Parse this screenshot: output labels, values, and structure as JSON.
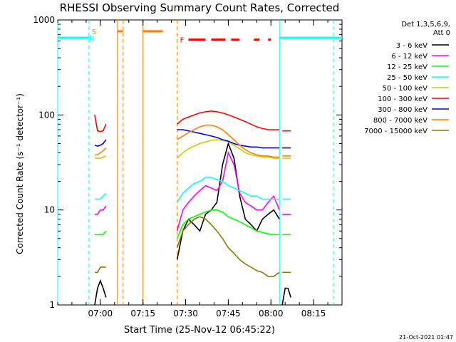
{
  "chart_data": {
    "type": "line",
    "title": "RHESSI Observing Summary Count Rates, Corrected",
    "xlabel": "Start Time (25-Nov-12 06:45:22)",
    "ylabel": "Corrected Count Rate (s⁻¹ detector⁻¹)",
    "yscale": "log",
    "ylim": [
      1,
      1000
    ],
    "yticks": [
      1,
      10,
      100,
      1000
    ],
    "ytick_labels": [
      "1",
      "10",
      "100",
      "1000"
    ],
    "xlim": [
      "06:45",
      "08:25"
    ],
    "xticks": [
      "07:00",
      "07:15",
      "07:30",
      "07:45",
      "08:00",
      "08:15"
    ],
    "legend": {
      "position": "top-right",
      "header": [
        "Det 1,3,5,6,9,",
        "Att 0"
      ]
    },
    "footer": "21-Oct-2021 01:47",
    "series": [
      {
        "name": "3 - 6 keV",
        "color": "#000000",
        "segments": [
          {
            "x": [
              "06:58",
              "06:59",
              "07:00",
              "07:01",
              "07:02"
            ],
            "y": [
              1.0,
              1.5,
              1.8,
              1.5,
              1.2
            ]
          },
          {
            "x": [
              "07:27",
              "07:29",
              "07:31",
              "07:33",
              "07:35",
              "07:37",
              "07:39",
              "07:41",
              "07:43",
              "07:45",
              "07:47",
              "07:49",
              "07:51",
              "07:53",
              "07:55",
              "07:57",
              "07:59",
              "08:01",
              "08:03"
            ],
            "y": [
              3,
              6,
              8,
              7,
              6,
              9,
              10,
              12,
              30,
              50,
              35,
              14,
              8,
              7,
              6,
              8,
              9,
              10,
              8
            ]
          },
          {
            "x": [
              "08:04",
              "08:05",
              "08:06",
              "08:07"
            ],
            "y": [
              1.0,
              1.5,
              1.5,
              1.2
            ]
          }
        ]
      },
      {
        "name": "6 - 12 keV",
        "color": "#ff00ff",
        "segments": [
          {
            "x": [
              "06:58",
              "06:59",
              "07:00",
              "07:01",
              "07:02"
            ],
            "y": [
              9,
              9,
              10,
              10,
              11
            ]
          },
          {
            "x": [
              "07:27",
              "07:29",
              "07:31",
              "07:33",
              "07:35",
              "07:37",
              "07:39",
              "07:41",
              "07:43",
              "07:45",
              "07:47",
              "07:49",
              "07:51",
              "07:53",
              "07:55",
              "07:57",
              "07:59",
              "08:01",
              "08:03"
            ],
            "y": [
              6,
              10,
              12,
              14,
              16,
              18,
              17,
              16,
              20,
              40,
              30,
              15,
              12,
              11,
              10,
              10,
              12,
              14,
              10
            ]
          },
          {
            "x": [
              "08:04",
              "08:05",
              "08:06",
              "08:07"
            ],
            "y": [
              9,
              9,
              9,
              9
            ]
          }
        ]
      },
      {
        "name": "12 - 25 keV",
        "color": "#00ff00",
        "segments": [
          {
            "x": [
              "06:58",
              "06:59",
              "07:00",
              "07:01",
              "07:02"
            ],
            "y": [
              5.5,
              5.5,
              5.5,
              5.5,
              6
            ]
          },
          {
            "x": [
              "07:27",
              "07:29",
              "07:31",
              "07:33",
              "07:35",
              "07:37",
              "07:39",
              "07:41",
              "07:43",
              "07:45",
              "07:47",
              "07:49",
              "07:51",
              "07:53",
              "07:55",
              "07:57",
              "07:59",
              "08:01",
              "08:03"
            ],
            "y": [
              5,
              7,
              8,
              8.5,
              9,
              9.5,
              10,
              10,
              9.5,
              8.5,
              8,
              7.5,
              7,
              6.5,
              6,
              5.8,
              5.6,
              5.5,
              5.5
            ]
          },
          {
            "x": [
              "08:04",
              "08:05",
              "08:06",
              "08:07"
            ],
            "y": [
              5.5,
              5.5,
              5.5,
              5.5
            ]
          }
        ]
      },
      {
        "name": "25 - 50 keV",
        "color": "#00ffff",
        "segments": [
          {
            "x": [
              "06:58",
              "06:59",
              "07:00",
              "07:01",
              "07:02"
            ],
            "y": [
              13,
              13,
              13,
              14,
              15
            ]
          },
          {
            "x": [
              "07:27",
              "07:29",
              "07:31",
              "07:33",
              "07:35",
              "07:37",
              "07:39",
              "07:41",
              "07:43",
              "07:45",
              "07:47",
              "07:49",
              "07:51",
              "07:53",
              "07:55",
              "07:57",
              "07:59",
              "08:01",
              "08:03"
            ],
            "y": [
              12,
              15,
              17,
              19,
              20,
              22,
              22,
              21,
              20,
              18,
              17,
              16,
              15,
              14,
              14,
              13,
              13,
              13,
              13
            ]
          },
          {
            "x": [
              "08:04",
              "08:05",
              "08:06",
              "08:07"
            ],
            "y": [
              13,
              13,
              13,
              13
            ]
          }
        ]
      },
      {
        "name": "50 - 100 keV",
        "color": "#cccc00",
        "segments": [
          {
            "x": [
              "06:58",
              "06:59",
              "07:00",
              "07:01",
              "07:02"
            ],
            "y": [
              35,
              35,
              35,
              36,
              37
            ]
          },
          {
            "x": [
              "07:27",
              "07:29",
              "07:31",
              "07:33",
              "07:35",
              "07:37",
              "07:39",
              "07:41",
              "07:43",
              "07:45",
              "07:47",
              "07:49",
              "07:51",
              "07:53",
              "07:55",
              "07:57",
              "07:59",
              "08:01",
              "08:03"
            ],
            "y": [
              35,
              40,
              44,
              47,
              50,
              52,
              54,
              55,
              54,
              52,
              48,
              44,
              40,
              38,
              37,
              36,
              36,
              35,
              35
            ]
          },
          {
            "x": [
              "08:04",
              "08:05",
              "08:06",
              "08:07"
            ],
            "y": [
              35,
              35,
              35,
              35
            ]
          }
        ]
      },
      {
        "name": "100 - 300 keV",
        "color": "#ff0000",
        "segments": [
          {
            "x": [
              "06:58",
              "06:59",
              "07:00",
              "07:01",
              "07:02"
            ],
            "y": [
              100,
              68,
              67,
              68,
              80
            ]
          },
          {
            "x": [
              "07:27",
              "07:29",
              "07:31",
              "07:33",
              "07:35",
              "07:37",
              "07:39",
              "07:41",
              "07:43",
              "07:45",
              "07:47",
              "07:49",
              "07:51",
              "07:53",
              "07:55",
              "07:57",
              "07:59",
              "08:01",
              "08:03"
            ],
            "y": [
              80,
              90,
              95,
              100,
              105,
              108,
              110,
              108,
              105,
              100,
              95,
              90,
              85,
              80,
              75,
              72,
              70,
              70,
              70
            ]
          },
          {
            "x": [
              "08:04",
              "08:05",
              "08:06",
              "08:07"
            ],
            "y": [
              68,
              68,
              68,
              68
            ]
          }
        ]
      },
      {
        "name": "300 - 800 keV",
        "color": "#0000ff",
        "segments": [
          {
            "x": [
              "06:58",
              "06:59",
              "07:00",
              "07:01",
              "07:02"
            ],
            "y": [
              48,
              47,
              48,
              50,
              55
            ]
          },
          {
            "x": [
              "07:27",
              "07:29",
              "07:31",
              "07:33",
              "07:35",
              "07:37",
              "07:39",
              "07:41",
              "07:43",
              "07:45",
              "07:47",
              "07:49",
              "07:51",
              "07:53",
              "07:55",
              "07:57",
              "07:59",
              "08:01",
              "08:03"
            ],
            "y": [
              70,
              70,
              68,
              66,
              64,
              62,
              60,
              58,
              55,
              53,
              50,
              48,
              47,
              46,
              46,
              45,
              45,
              45,
              45
            ]
          },
          {
            "x": [
              "08:04",
              "08:05",
              "08:06",
              "08:07"
            ],
            "y": [
              45,
              45,
              45,
              45
            ]
          }
        ]
      },
      {
        "name": "800 - 7000 keV",
        "color": "#ff8000",
        "segments": [
          {
            "x": [
              "06:58",
              "06:59",
              "07:00",
              "07:01",
              "07:02"
            ],
            "y": [
              38,
              38,
              40,
              42,
              45
            ]
          },
          {
            "x": [
              "07:27",
              "07:29",
              "07:31",
              "07:33",
              "07:35",
              "07:37",
              "07:39",
              "07:41",
              "07:43",
              "07:45",
              "07:47",
              "07:49",
              "07:51",
              "07:53",
              "07:55",
              "07:57",
              "07:59",
              "08:01",
              "08:03"
            ],
            "y": [
              55,
              60,
              65,
              70,
              75,
              78,
              78,
              75,
              70,
              62,
              55,
              48,
              43,
              40,
              38,
              37,
              37,
              36,
              36
            ]
          },
          {
            "x": [
              "08:04",
              "08:05",
              "08:06",
              "08:07"
            ],
            "y": [
              37,
              37,
              37,
              37
            ]
          }
        ]
      },
      {
        "name": "7000 - 15000 keV",
        "color": "#808000",
        "segments": [
          {
            "x": [
              "06:58",
              "06:59",
              "07:00",
              "07:01",
              "07:02"
            ],
            "y": [
              2.2,
              2.2,
              2.5,
              2.5,
              2.5
            ]
          },
          {
            "x": [
              "07:27",
              "07:29",
              "07:31",
              "07:33",
              "07:35",
              "07:37",
              "07:39",
              "07:41",
              "07:43",
              "07:45",
              "07:47",
              "07:49",
              "07:51",
              "07:53",
              "07:55",
              "07:57",
              "07:59",
              "08:01",
              "08:03"
            ],
            "y": [
              4,
              6,
              7,
              8,
              8.5,
              8,
              7,
              6,
              5,
              4,
              3.5,
              3,
              2.7,
              2.5,
              2.3,
              2.2,
              2.0,
              2.0,
              2.2
            ]
          },
          {
            "x": [
              "08:04",
              "08:05",
              "08:06",
              "08:07"
            ],
            "y": [
              2.2,
              2.2,
              2.2,
              2.2
            ]
          }
        ]
      }
    ],
    "annotations": {
      "segments": [
        {
          "color": "#00ffff",
          "y": 650,
          "ranges": [
            [
              "06:45",
              "06:56"
            ],
            [
              "08:03",
              "08:25"
            ]
          ]
        },
        {
          "color": "#ff8000",
          "y": 760,
          "ranges": [
            [
              "07:06",
              "07:08"
            ],
            [
              "07:15",
              "07:22"
            ]
          ]
        },
        {
          "color": "#ff0000",
          "y": 620,
          "ranges": [
            [
              "07:31",
              "07:37"
            ],
            [
              "07:39",
              "07:44"
            ],
            [
              "07:46",
              "07:49"
            ],
            [
              "07:54",
              "07:56"
            ],
            [
              "07:59",
              "08:00"
            ]
          ]
        }
      ],
      "vlines": [
        {
          "color": "#00ffff",
          "x": "06:45",
          "style": "solid"
        },
        {
          "color": "#00ffff",
          "x": "06:56",
          "style": "dashed"
        },
        {
          "color": "#ff8000",
          "x": "07:06",
          "style": "solid"
        },
        {
          "color": "#ff8000",
          "x": "07:08",
          "style": "dashed"
        },
        {
          "color": "#ff8000",
          "x": "07:15",
          "style": "solid"
        },
        {
          "color": "#ff8000",
          "x": "07:27",
          "style": "dashed"
        },
        {
          "color": "#00ffff",
          "x": "08:03",
          "style": "solid"
        },
        {
          "color": "#00ffff",
          "x": "08:22",
          "style": "dashed"
        }
      ],
      "labels": [
        {
          "text": "S",
          "color": "#ff8000",
          "x": "06:57",
          "y": 760
        },
        {
          "text": "N",
          "color": "#00ffff",
          "x": "06:56",
          "y": 650
        },
        {
          "text": "F",
          "color": "#ff0000",
          "x": "07:28",
          "y": 620
        }
      ]
    }
  }
}
